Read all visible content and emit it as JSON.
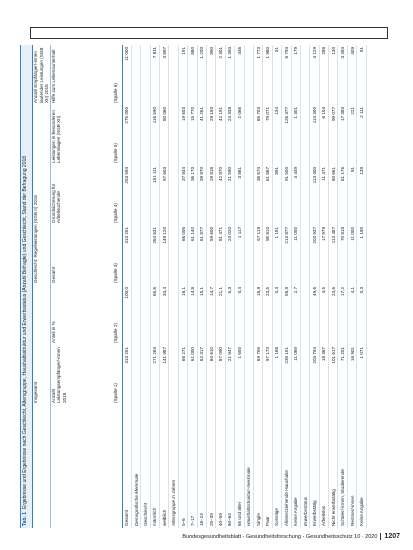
{
  "table": {
    "title_label": "Tab. 1",
    "title": "Ergebnisse und Ergebnisse nach Geschlecht, Altersgruppe, Haushaltsstruktur und Erwerbsstatus (Anzahl Befragte) und Geschlecht, Stand der Befragung 2018",
    "groups": [
      {
        "label": "Insgesamt",
        "span": 2
      },
      {
        "label": "Geschlecht: Regelleistungen (SGB II) 2018",
        "span": 3
      },
      {
        "label": "Anzahl Empfänger/-innen laufender Leistungen (SGB XII) 2018",
        "span": 1
      }
    ],
    "columns": [
      "Anzahl Leistungsempfänger/-innen 2018",
      "Anteil in %",
      "Gesamt",
      "Grundsicherung für Arbeitsuchende",
      "Leistungen in besonderen Lebenslagen (SGB XII)",
      "Hilfe zum Lebensunterhalt"
    ],
    "column_numbers": [
      "(Spalte 1)",
      "(Spalte 2)",
      "(Spalte 3)",
      "(Spalte 4)",
      "(Spalte 5)",
      "(Spalte 6)"
    ],
    "rows": [
      {
        "label": "Gesamt",
        "cells": [
          "413 251",
          "100,0",
          "413 251",
          "253 594",
          "275 000",
          "11 000"
        ]
      },
      {
        "label": "Demografische Merkmale",
        "cells": []
      },
      {
        "label": "Geschlecht",
        "cells": []
      },
      {
        "label": "männlich",
        "cells": [
          "271 264",
          "65,6",
          "264 631",
          "151 111",
          "116 590",
          "7 811"
        ]
      },
      {
        "label": "weiblich",
        "cells": [
          "141 987",
          "34,4",
          "149 120",
          "97 603",
          "80 060",
          "4 897"
        ]
      },
      {
        "label": "Altersgruppe in Jahren",
        "cells": []
      },
      {
        "label": "0–6",
        "cells": [
          "66 271",
          "16,1",
          "66 006",
          "37 844",
          "19 603",
          "191"
        ]
      },
      {
        "label": "7–17",
        "cells": [
          "61 000",
          "14,8",
          "61 140",
          "36 170",
          "15 770",
          "880"
        ]
      },
      {
        "label": "18–24",
        "cells": [
          "62 317",
          "15,1",
          "61 877",
          "39 870",
          "41 261",
          "1 200"
        ]
      },
      {
        "label": "25–39",
        "cells": [
          "60 610",
          "14,7",
          "59 600",
          "29 818",
          "29 193",
          "890"
        ]
      },
      {
        "label": "40–59",
        "cells": [
          "87 090",
          "21,1",
          "81 471",
          "42 870",
          "42 191",
          "2 301"
        ]
      },
      {
        "label": "60–64",
        "cells": [
          "21 947",
          "5,3",
          "23 020",
          "21 590",
          "24 339",
          "1 393"
        ]
      },
      {
        "label": "65 und älter",
        "cells": [
          "1 600",
          "0,4",
          "1 117",
          "3 861",
          "2 066",
          "446"
        ]
      },
      {
        "label": "Haushaltsstruktur/-merkmale",
        "cells": []
      },
      {
        "label": "Single",
        "cells": [
          "69 759",
          "16,9",
          "67 119",
          "36 674",
          "65 703",
          "1 773"
        ]
      },
      {
        "label": "Paar",
        "cells": [
          "97 173",
          "23,5",
          "95 810",
          "81 867",
          "79 071",
          "1 980"
        ]
      },
      {
        "label": "Sonstige",
        "cells": [
          "1 168",
          "0,3",
          "1 181",
          "891",
          "134",
          "31"
        ]
      },
      {
        "label": "Alleinerziehende Haushalte",
        "cells": [
          "235 151",
          "56,9",
          "213 877",
          "91 500",
          "126 377",
          "6 793"
        ]
      },
      {
        "label": "Keine Angabe",
        "cells": [
          "11 069",
          "2,7",
          "11 000",
          "4 449",
          "1 301",
          "179"
        ]
      },
      {
        "label": "Erwerbsstatus",
        "cells": []
      },
      {
        "label": "Erwerbstätig",
        "cells": [
          "204 794",
          "49,6",
          "204 937",
          "113 400",
          "114 300",
          "4 129"
        ]
      },
      {
        "label": "Arbeitslos",
        "cells": [
          "18 367",
          "4,5",
          "17 979",
          "11 471",
          "6 104",
          "288"
        ]
      },
      {
        "label": "Nicht erwerbstätig",
        "cells": [
          "101 617",
          "24,6",
          "113 487",
          "80 661",
          "99 077",
          "130"
        ]
      },
      {
        "label": "Schüler/-innen, Studierende",
        "cells": [
          "71 201",
          "17,2",
          "70 818",
          "81 176",
          "17 383",
          "3 493"
        ]
      },
      {
        "label": "Rentner/-innen",
        "cells": [
          "16 901",
          "4,1",
          "11 000",
          "91",
          "221",
          "409"
        ]
      },
      {
        "label": "Keine Angabe",
        "cells": [
          "1 071",
          "0,3",
          "1 190",
          "139",
          "2 111",
          "91"
        ]
      }
    ]
  },
  "footer": {
    "journal": "Bundesgesundheitsblatt - Gesundheitsforschung - Gesundheitsschutz 10 · 2020",
    "page": "1207"
  }
}
